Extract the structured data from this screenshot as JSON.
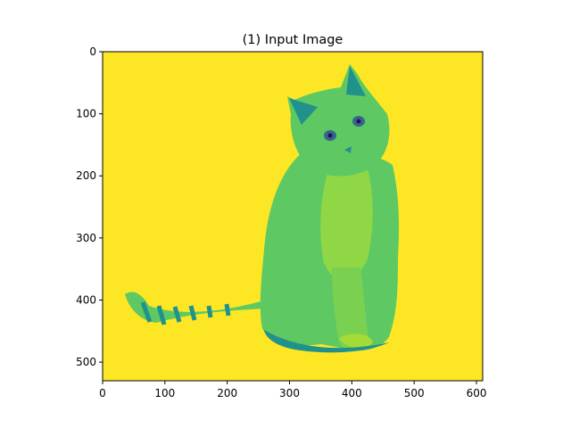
{
  "figure": {
    "title": "(1) Input Image",
    "background": "#ffffff"
  },
  "image": {
    "subject": "cat",
    "colormap": "viridis",
    "background_color": "#fde725",
    "body_color": "#5ec962",
    "shadow_color": "#21918c",
    "dark_color": "#3b528b",
    "eye_color": "#31688e"
  },
  "axes": {
    "xlim": [
      0,
      610
    ],
    "ylim": [
      530,
      0
    ],
    "xticks": [
      0,
      100,
      200,
      300,
      400,
      500,
      600
    ],
    "yticks": [
      0,
      100,
      200,
      300,
      400,
      500
    ],
    "xtick_labels": [
      "0",
      "100",
      "200",
      "300",
      "400",
      "500",
      "600"
    ],
    "ytick_labels": [
      "0",
      "100",
      "200",
      "300",
      "400",
      "500"
    ]
  }
}
